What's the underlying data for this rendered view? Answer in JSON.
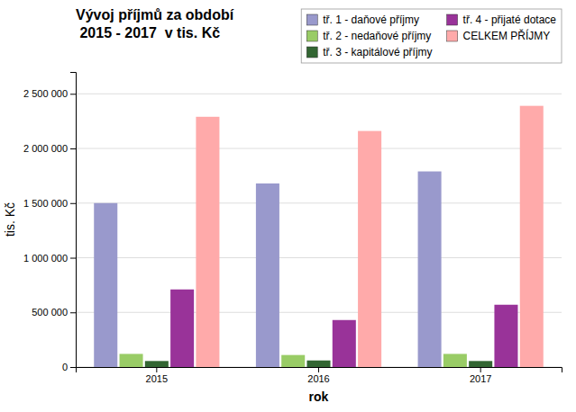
{
  "chart_data": {
    "type": "bar",
    "title": "Vývoj příjmů za období\n 2015 - 2017  v tis. Kč",
    "x_label": "rok",
    "y_label": "tis. Kč",
    "categories": [
      "2015",
      "2016",
      "2017"
    ],
    "series": [
      {
        "name": "tř. 1 - daňové příjmy",
        "color": "#9999CC",
        "values": [
          1500000,
          1680000,
          1790000
        ]
      },
      {
        "name": "tř. 2 - nedaňové příjmy",
        "color": "#99CC66",
        "values": [
          120000,
          110000,
          120000
        ]
      },
      {
        "name": "tř. 3 - kapitálové příjmy",
        "color": "#336633",
        "values": [
          55000,
          60000,
          55000
        ]
      },
      {
        "name": "tř. 4 - přijaté dotace",
        "color": "#993399",
        "values": [
          710000,
          430000,
          570000
        ]
      },
      {
        "name": "CELKEM PŘÍJMY",
        "color": "#FFAAAA",
        "values": [
          2290000,
          2160000,
          2390000
        ]
      }
    ],
    "ylim": [
      0,
      2700000
    ],
    "yticks": [
      0,
      {
        "value": 500000,
        "label": "500 000"
      },
      {
        "value": 1000000,
        "label": "1 000 000"
      },
      {
        "value": 1500000,
        "label": "1 500 000"
      },
      {
        "value": 2000000,
        "label": "2 000 000"
      },
      {
        "value": 2500000,
        "label": "2 500 000"
      }
    ],
    "grid": true,
    "legend": "upper right"
  }
}
